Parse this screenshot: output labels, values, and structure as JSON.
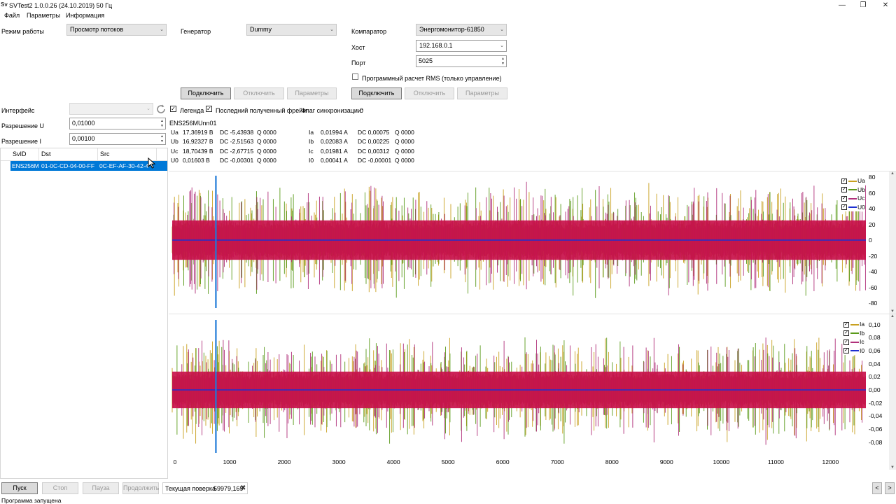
{
  "window": {
    "title": "SVTest2 1.0.0.26 (24.10.2019) 50 Гц",
    "minimize": "—",
    "restore": "❐",
    "close": "✕"
  },
  "menu": [
    "Файл",
    "Параметры",
    "Информация"
  ],
  "mode": {
    "label": "Режим работы",
    "value": "Просмотр потоков"
  },
  "generator": {
    "label": "Генератор",
    "value": "Dummy",
    "connect": "Подключить",
    "disconnect": "Отключить",
    "params": "Параметры"
  },
  "comparator": {
    "label": "Компаратор",
    "value": "Энергомонитор-61850",
    "host_label": "Хост",
    "host": "192.168.0.1",
    "port_label": "Порт",
    "port": "5025",
    "rms_label": "Программный расчет RMS (только управление)",
    "connect": "Подключить",
    "disconnect": "Отключить",
    "params": "Параметры"
  },
  "interface": {
    "label": "Интерфейс",
    "value": ""
  },
  "res_u": {
    "label": "Разрешение U",
    "value": "0,01000"
  },
  "res_i": {
    "label": "Разрешение I",
    "value": "0,00100"
  },
  "options": {
    "legend": "Легенда",
    "last_frame": "Последний полученный фрейм",
    "sync_label": "Флаг синхронизации:",
    "sync_value": "0"
  },
  "stream_name": "ENS256MUnn01",
  "voltages": [
    {
      "name": "Ua",
      "value": "17,36919 В",
      "dc": "DC -5,43938",
      "q": "Q 0000"
    },
    {
      "name": "Ub",
      "value": "16,92327 В",
      "dc": "DC -2,51563",
      "q": "Q 0000"
    },
    {
      "name": "Uc",
      "value": "18,70439 В",
      "dc": "DC -2,67715",
      "q": "Q 0000"
    },
    {
      "name": "U0",
      "value": "0,01603 В",
      "dc": "DC -0,00301",
      "q": "Q 0000"
    }
  ],
  "currents": [
    {
      "name": "Ia",
      "value": "0,01994 А",
      "dc": "DC 0,00075",
      "q": "Q 0000"
    },
    {
      "name": "Ib",
      "value": "0,02083 А",
      "dc": "DC 0,00225",
      "q": "Q 0000"
    },
    {
      "name": "Ic",
      "value": "0,01981 А",
      "dc": "DC 0,00312",
      "q": "Q 0000"
    },
    {
      "name": "I0",
      "value": "0,00041 А",
      "dc": "DC -0,00001",
      "q": "Q 0000"
    }
  ],
  "table": {
    "headers": [
      "SvID",
      "Dst",
      "Src"
    ],
    "rows": [
      [
        "ENS256M",
        "01-0C-CD-04-00-FF",
        "0C-EF-AF-30-42-4"
      ]
    ]
  },
  "chart_data": [
    {
      "type": "line",
      "series": [
        {
          "name": "Ua",
          "color": "#c8a020"
        },
        {
          "name": "Ub",
          "color": "#5a9a1a"
        },
        {
          "name": "Uc",
          "color": "#b0307a"
        },
        {
          "name": "U0",
          "color": "#1d2fd0"
        }
      ],
      "y_ticks": [
        "80",
        "60",
        "40",
        "20",
        "0",
        "-20",
        "-40",
        "-60",
        "-80"
      ],
      "ylim": [
        -80,
        80
      ],
      "xlim": [
        0,
        12700
      ],
      "cursor_x": 800,
      "amplitude_main": 25,
      "amplitude_spikes": 75
    },
    {
      "type": "line",
      "series": [
        {
          "name": "Ia",
          "color": "#c8a020"
        },
        {
          "name": "Ib",
          "color": "#5a9a1a"
        },
        {
          "name": "Ic",
          "color": "#b0307a"
        },
        {
          "name": "I0",
          "color": "#1d2fd0"
        }
      ],
      "y_ticks": [
        "0,10",
        "0,08",
        "0,06",
        "0,04",
        "0,02",
        "0,00",
        "-0,02",
        "-0,04",
        "-0,06",
        "-0,08"
      ],
      "ylim": [
        -0.09,
        0.105
      ],
      "xlim": [
        0,
        12700
      ],
      "x_ticks": [
        "0",
        "1000",
        "2000",
        "3000",
        "4000",
        "5000",
        "6000",
        "7000",
        "8000",
        "9000",
        "10000",
        "11000",
        "12000"
      ],
      "cursor_x": 800,
      "amplitude_main": 0.028,
      "amplitude_spikes": 0.085
    }
  ],
  "bottom": {
    "start": "Пуск",
    "stop": "Стоп",
    "pause": "Пауза",
    "resume": "Продолжить",
    "current_label": "Текущая поверка",
    "current_value": "59979,169",
    "prev": "<",
    "next": ">"
  },
  "status": "Программа запущена"
}
